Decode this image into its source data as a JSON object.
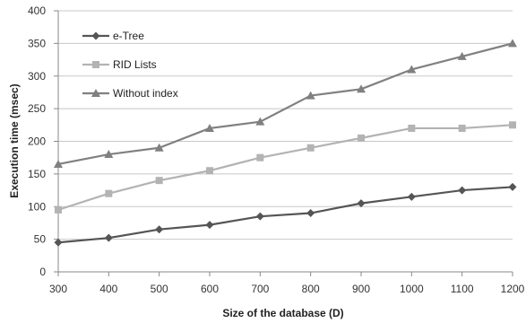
{
  "chart_data": {
    "type": "line",
    "title": "",
    "xlabel": "Size of the database  (D)",
    "ylabel": "Execution time (msec)",
    "x": [
      300,
      400,
      500,
      600,
      700,
      800,
      900,
      1000,
      1100,
      1200
    ],
    "xlim": [
      300,
      1200
    ],
    "ylim": [
      0,
      400
    ],
    "yticks": [
      0,
      50,
      100,
      150,
      200,
      250,
      300,
      350,
      400
    ],
    "grid": "horizontal",
    "legend_position": "top-left",
    "series": [
      {
        "name": "e-Tree",
        "color": "#555555",
        "marker": "diamond",
        "values": [
          45,
          52,
          65,
          72,
          85,
          90,
          105,
          115,
          125,
          130
        ]
      },
      {
        "name": "RID Lists",
        "color": "#b3b3b3",
        "marker": "square",
        "values": [
          95,
          120,
          140,
          155,
          175,
          190,
          205,
          220,
          220,
          225
        ]
      },
      {
        "name": "Without index",
        "color": "#808080",
        "marker": "triangle",
        "values": [
          165,
          180,
          190,
          220,
          230,
          270,
          280,
          310,
          330,
          350
        ]
      }
    ]
  }
}
